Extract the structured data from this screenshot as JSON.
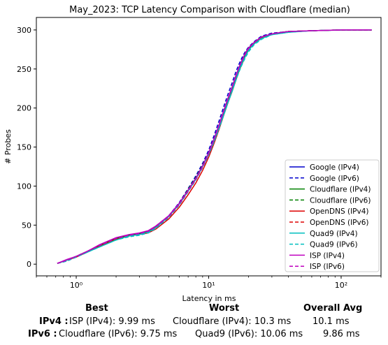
{
  "chart_data": {
    "type": "line",
    "title": "May_2023: TCP Latency Comparison with Cloudflare (median)",
    "xlabel": "Latency in ms",
    "ylabel": "# Probes",
    "xscale": "log",
    "xlim": [
      0.5,
      200
    ],
    "ylim": [
      -15,
      316
    ],
    "x_ticks": [
      1,
      10,
      100
    ],
    "x_tick_labels": [
      "10⁰",
      "10¹",
      "10²"
    ],
    "y_ticks": [
      0,
      50,
      100,
      150,
      200,
      250,
      300
    ],
    "grid": false,
    "legend_position": "lower-right",
    "series": [
      {
        "name": "Google (IPv4)",
        "color": "#0000cc",
        "dash": "solid",
        "x": [
          0.72,
          0.85,
          1.0,
          1.2,
          1.5,
          2.0,
          2.5,
          3.0,
          3.5,
          4.0,
          5.0,
          6.0,
          7.0,
          8.0,
          9.0,
          10.0,
          11.0,
          12.0,
          13.0,
          14.0,
          15.0,
          16.0,
          17.0,
          18.0,
          19.0,
          20.0,
          22.0,
          25.0,
          30.0,
          40.0,
          60.0,
          100.0,
          170.0
        ],
        "y": [
          1,
          5,
          10,
          16,
          24,
          33,
          37,
          39,
          42,
          48,
          62,
          78,
          95,
          110,
          126,
          142,
          160,
          178,
          196,
          212,
          226,
          240,
          252,
          262,
          270,
          276,
          284,
          291,
          295,
          298,
          299,
          300,
          300
        ]
      },
      {
        "name": "Google (IPv6)",
        "color": "#0000cc",
        "dash": "dashed",
        "x": [
          0.72,
          0.85,
          1.0,
          1.2,
          1.5,
          2.0,
          2.5,
          3.0,
          3.5,
          4.0,
          5.0,
          6.0,
          7.0,
          8.0,
          9.0,
          10.0,
          11.0,
          12.0,
          13.0,
          14.0,
          15.0,
          16.0,
          17.0,
          18.0,
          19.0,
          20.0,
          22.0,
          25.0,
          30.0,
          40.0,
          60.0,
          100.0,
          170.0
        ],
        "y": [
          1,
          4,
          9,
          15,
          23,
          32,
          36,
          38,
          41,
          47,
          62,
          79,
          97,
          113,
          129,
          146,
          165,
          184,
          202,
          218,
          232,
          246,
          257,
          266,
          273,
          278,
          285,
          292,
          296,
          298,
          299,
          300,
          300
        ]
      },
      {
        "name": "Cloudflare (IPv4)",
        "color": "#008000",
        "dash": "solid",
        "x": [
          0.72,
          0.85,
          1.0,
          1.2,
          1.5,
          2.0,
          2.5,
          3.0,
          3.5,
          4.0,
          5.0,
          6.0,
          7.0,
          8.0,
          9.0,
          10.0,
          11.0,
          12.0,
          13.0,
          14.0,
          15.0,
          16.0,
          17.0,
          18.0,
          19.0,
          20.0,
          22.0,
          25.0,
          30.0,
          40.0,
          60.0,
          100.0,
          170.0
        ],
        "y": [
          1,
          5,
          10,
          16,
          24,
          33,
          37,
          39,
          42,
          48,
          61,
          77,
          94,
          109,
          125,
          141,
          158,
          176,
          194,
          210,
          224,
          238,
          250,
          260,
          268,
          275,
          283,
          290,
          295,
          298,
          299,
          300,
          300
        ]
      },
      {
        "name": "Cloudflare (IPv6)",
        "color": "#008000",
        "dash": "dashed",
        "x": [
          0.72,
          0.85,
          1.0,
          1.2,
          1.5,
          2.0,
          2.5,
          3.0,
          3.5,
          4.0,
          5.0,
          6.0,
          7.0,
          8.0,
          9.0,
          10.0,
          11.0,
          12.0,
          13.0,
          14.0,
          15.0,
          16.0,
          17.0,
          18.0,
          19.0,
          20.0,
          22.0,
          25.0,
          30.0,
          40.0,
          60.0,
          100.0,
          170.0
        ],
        "y": [
          1,
          5,
          10,
          16,
          24,
          33,
          37,
          39,
          42,
          49,
          62,
          78,
          96,
          111,
          127,
          143,
          161,
          179,
          197,
          213,
          227,
          241,
          253,
          263,
          271,
          277,
          284,
          291,
          295,
          298,
          299,
          300,
          300
        ]
      },
      {
        "name": "OpenDNS (IPv4)",
        "color": "#dd0000",
        "dash": "solid",
        "x": [
          0.72,
          0.85,
          1.0,
          1.2,
          1.5,
          2.0,
          2.5,
          3.0,
          3.5,
          4.0,
          5.0,
          6.0,
          7.0,
          8.0,
          9.0,
          10.0,
          11.0,
          12.0,
          13.0,
          14.0,
          15.0,
          16.0,
          17.0,
          18.0,
          19.0,
          20.0,
          22.0,
          25.0,
          30.0,
          40.0,
          60.0,
          100.0,
          170.0
        ],
        "y": [
          1,
          5,
          9,
          15,
          23,
          32,
          36,
          38,
          40,
          45,
          58,
          73,
          89,
          104,
          120,
          137,
          155,
          173,
          191,
          207,
          221,
          235,
          248,
          258,
          267,
          274,
          283,
          290,
          295,
          298,
          299,
          300,
          300
        ]
      },
      {
        "name": "OpenDNS (IPv6)",
        "color": "#dd0000",
        "dash": "dashed",
        "x": [
          0.72,
          0.85,
          1.0,
          1.2,
          1.5,
          2.0,
          2.5,
          3.0,
          3.5,
          4.0,
          5.0,
          6.0,
          7.0,
          8.0,
          9.0,
          10.0,
          11.0,
          12.0,
          13.0,
          14.0,
          15.0,
          16.0,
          17.0,
          18.0,
          19.0,
          20.0,
          22.0,
          25.0,
          30.0,
          40.0,
          60.0,
          100.0,
          170.0
        ],
        "y": [
          1,
          5,
          10,
          16,
          24,
          33,
          37,
          39,
          41,
          47,
          60,
          76,
          93,
          108,
          124,
          140,
          158,
          176,
          194,
          210,
          224,
          238,
          250,
          260,
          268,
          275,
          283,
          290,
          295,
          298,
          299,
          300,
          300
        ]
      },
      {
        "name": "Quad9 (IPv4)",
        "color": "#00bfbf",
        "dash": "solid",
        "x": [
          0.72,
          0.85,
          1.0,
          1.2,
          1.5,
          2.0,
          2.5,
          3.0,
          3.5,
          4.0,
          5.0,
          6.0,
          7.0,
          8.0,
          9.0,
          10.0,
          11.0,
          12.0,
          13.0,
          14.0,
          15.0,
          16.0,
          17.0,
          18.0,
          19.0,
          20.0,
          22.0,
          25.0,
          30.0,
          40.0,
          60.0,
          100.0,
          170.0
        ],
        "y": [
          1,
          5,
          10,
          15,
          22,
          31,
          36,
          38,
          41,
          47,
          61,
          77,
          94,
          109,
          125,
          141,
          158,
          175,
          192,
          208,
          222,
          236,
          249,
          259,
          267,
          274,
          282,
          289,
          294,
          297,
          299,
          300,
          300
        ]
      },
      {
        "name": "Quad9 (IPv6)",
        "color": "#00bfbf",
        "dash": "dashed",
        "x": [
          0.72,
          0.85,
          1.0,
          1.2,
          1.5,
          2.0,
          2.5,
          3.0,
          3.5,
          4.0,
          5.0,
          6.0,
          7.0,
          8.0,
          9.0,
          10.0,
          11.0,
          12.0,
          13.0,
          14.0,
          15.0,
          16.0,
          17.0,
          18.0,
          19.0,
          20.0,
          22.0,
          25.0,
          30.0,
          40.0,
          60.0,
          100.0,
          170.0
        ],
        "y": [
          1,
          4,
          9,
          15,
          22,
          31,
          35,
          37,
          40,
          46,
          60,
          76,
          93,
          108,
          124,
          140,
          157,
          174,
          191,
          207,
          221,
          235,
          247,
          257,
          265,
          272,
          281,
          288,
          294,
          297,
          299,
          300,
          300
        ]
      },
      {
        "name": "ISP (IPv4)",
        "color": "#bf00bf",
        "dash": "solid",
        "x": [
          0.72,
          0.85,
          1.0,
          1.2,
          1.5,
          2.0,
          2.5,
          3.0,
          3.5,
          4.0,
          5.0,
          6.0,
          7.0,
          8.0,
          9.0,
          10.0,
          11.0,
          12.0,
          13.0,
          14.0,
          15.0,
          16.0,
          17.0,
          18.0,
          19.0,
          20.0,
          22.0,
          25.0,
          30.0,
          40.0,
          60.0,
          100.0,
          170.0
        ],
        "y": [
          1,
          6,
          10,
          16,
          25,
          34,
          38,
          40,
          43,
          49,
          62,
          78,
          95,
          110,
          126,
          143,
          161,
          179,
          197,
          213,
          227,
          241,
          253,
          263,
          271,
          277,
          284,
          291,
          295,
          298,
          299,
          300,
          300
        ]
      },
      {
        "name": "ISP (IPv6)",
        "color": "#bf00bf",
        "dash": "dashed",
        "x": [
          0.72,
          0.85,
          1.0,
          1.2,
          1.5,
          2.0,
          2.5,
          3.0,
          3.5,
          4.0,
          5.0,
          6.0,
          7.0,
          8.0,
          9.0,
          10.0,
          11.0,
          12.0,
          13.0,
          14.0,
          15.0,
          16.0,
          17.0,
          18.0,
          19.0,
          20.0,
          22.0,
          25.0,
          30.0,
          40.0,
          60.0,
          100.0,
          170.0
        ],
        "y": [
          1,
          5,
          10,
          16,
          24,
          33,
          37,
          39,
          42,
          48,
          61,
          77,
          94,
          109,
          125,
          142,
          160,
          178,
          196,
          212,
          226,
          240,
          252,
          262,
          270,
          276,
          284,
          291,
          295,
          298,
          299,
          300,
          300
        ]
      }
    ]
  },
  "summary": {
    "headers": {
      "best": "Best",
      "worst": "Worst",
      "overall": "Overall Avg"
    },
    "rows": [
      {
        "label": "IPv4 :",
        "best": "ISP (IPv4): 9.99 ms",
        "worst": "Cloudflare (IPv4): 10.3 ms",
        "overall": "10.1 ms"
      },
      {
        "label": "IPv6 :",
        "best": "Cloudflare (IPv6): 9.75 ms",
        "worst": "Quad9 (IPv6): 10.06 ms",
        "overall": "9.86 ms"
      }
    ]
  }
}
